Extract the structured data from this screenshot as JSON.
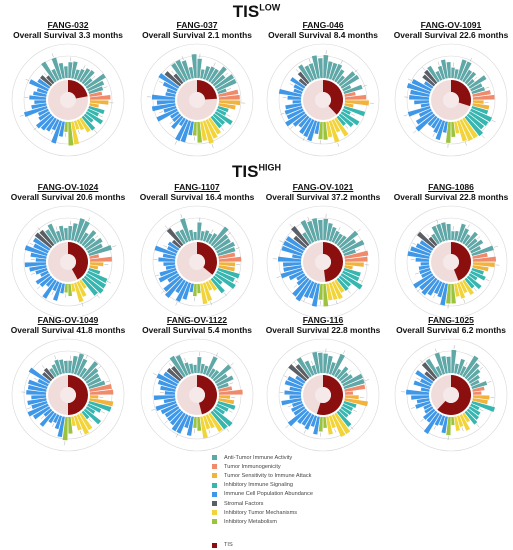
{
  "sections": {
    "low": {
      "base": "TIS",
      "sup": "LOW"
    },
    "high": {
      "base": "TIS",
      "sup": "HIGH"
    }
  },
  "legend": {
    "items": [
      {
        "label": "Anti-Tumor Immune Activity",
        "color": "#5fa8a7"
      },
      {
        "label": "Tumor Immunogenicity",
        "color": "#ef8a6a"
      },
      {
        "label": "Tumor Sensitivity to Immune Attack",
        "color": "#f2b33d"
      },
      {
        "label": "Inhibitory Immune Signaling",
        "color": "#37b6b0"
      },
      {
        "label": "Immune Cell Population Abundance",
        "color": "#3f97e8"
      },
      {
        "label": "Stromal Factors",
        "color": "#5a5f66"
      },
      {
        "label": "Inhibitory Tumor Mechanisms",
        "color": "#f2d43a"
      },
      {
        "label": "Inhibitory Metabolism",
        "color": "#9cc33e"
      }
    ],
    "tis": {
      "label": "TIS",
      "color": "#8b0f0f"
    }
  },
  "chart_data": [
    {
      "type": "radial-bar",
      "patient": "FANG-032",
      "survival": "Overall Survival 3.3 months",
      "tis_fraction": 0.22
    },
    {
      "type": "radial-bar",
      "patient": "FANG-037",
      "survival": "Overall Survival 2.1 months",
      "tis_fraction": 0.24
    },
    {
      "type": "radial-bar",
      "patient": "FANG-046",
      "survival": "Overall Survival 8.4 months",
      "tis_fraction": 0.38
    },
    {
      "type": "radial-bar",
      "patient": "FANG-OV-1091",
      "survival": "Overall Survival 22.6 months",
      "tis_fraction": 0.3
    },
    {
      "type": "radial-bar",
      "patient": "FANG-OV-1024",
      "survival": "Overall Survival 20.6 months",
      "tis_fraction": 0.42
    },
    {
      "type": "radial-bar",
      "patient": "FANG-1107",
      "survival": "Overall Survival 16.4 months",
      "tis_fraction": 0.36
    },
    {
      "type": "radial-bar",
      "patient": "FANG-OV-1021",
      "survival": "Overall Survival 37.2 months",
      "tis_fraction": 0.48
    },
    {
      "type": "radial-bar",
      "patient": "FANG-1086",
      "survival": "Overall Survival 22.8 months",
      "tis_fraction": 0.44
    },
    {
      "type": "radial-bar",
      "patient": "FANG-OV-1049",
      "survival": "Overall Survival 41.8 months",
      "tis_fraction": 0.5
    },
    {
      "type": "radial-bar",
      "patient": "FANG-OV-1122",
      "survival": "Overall Survival 5.4 months",
      "tis_fraction": 0.46
    },
    {
      "type": "radial-bar",
      "patient": "FANG-116",
      "survival": "Overall Survival 22.8 months",
      "tis_fraction": 0.55
    },
    {
      "type": "radial-bar",
      "patient": "FANG-1025",
      "survival": "Overall Survival 6.2 months",
      "tis_fraction": 0.62
    }
  ]
}
